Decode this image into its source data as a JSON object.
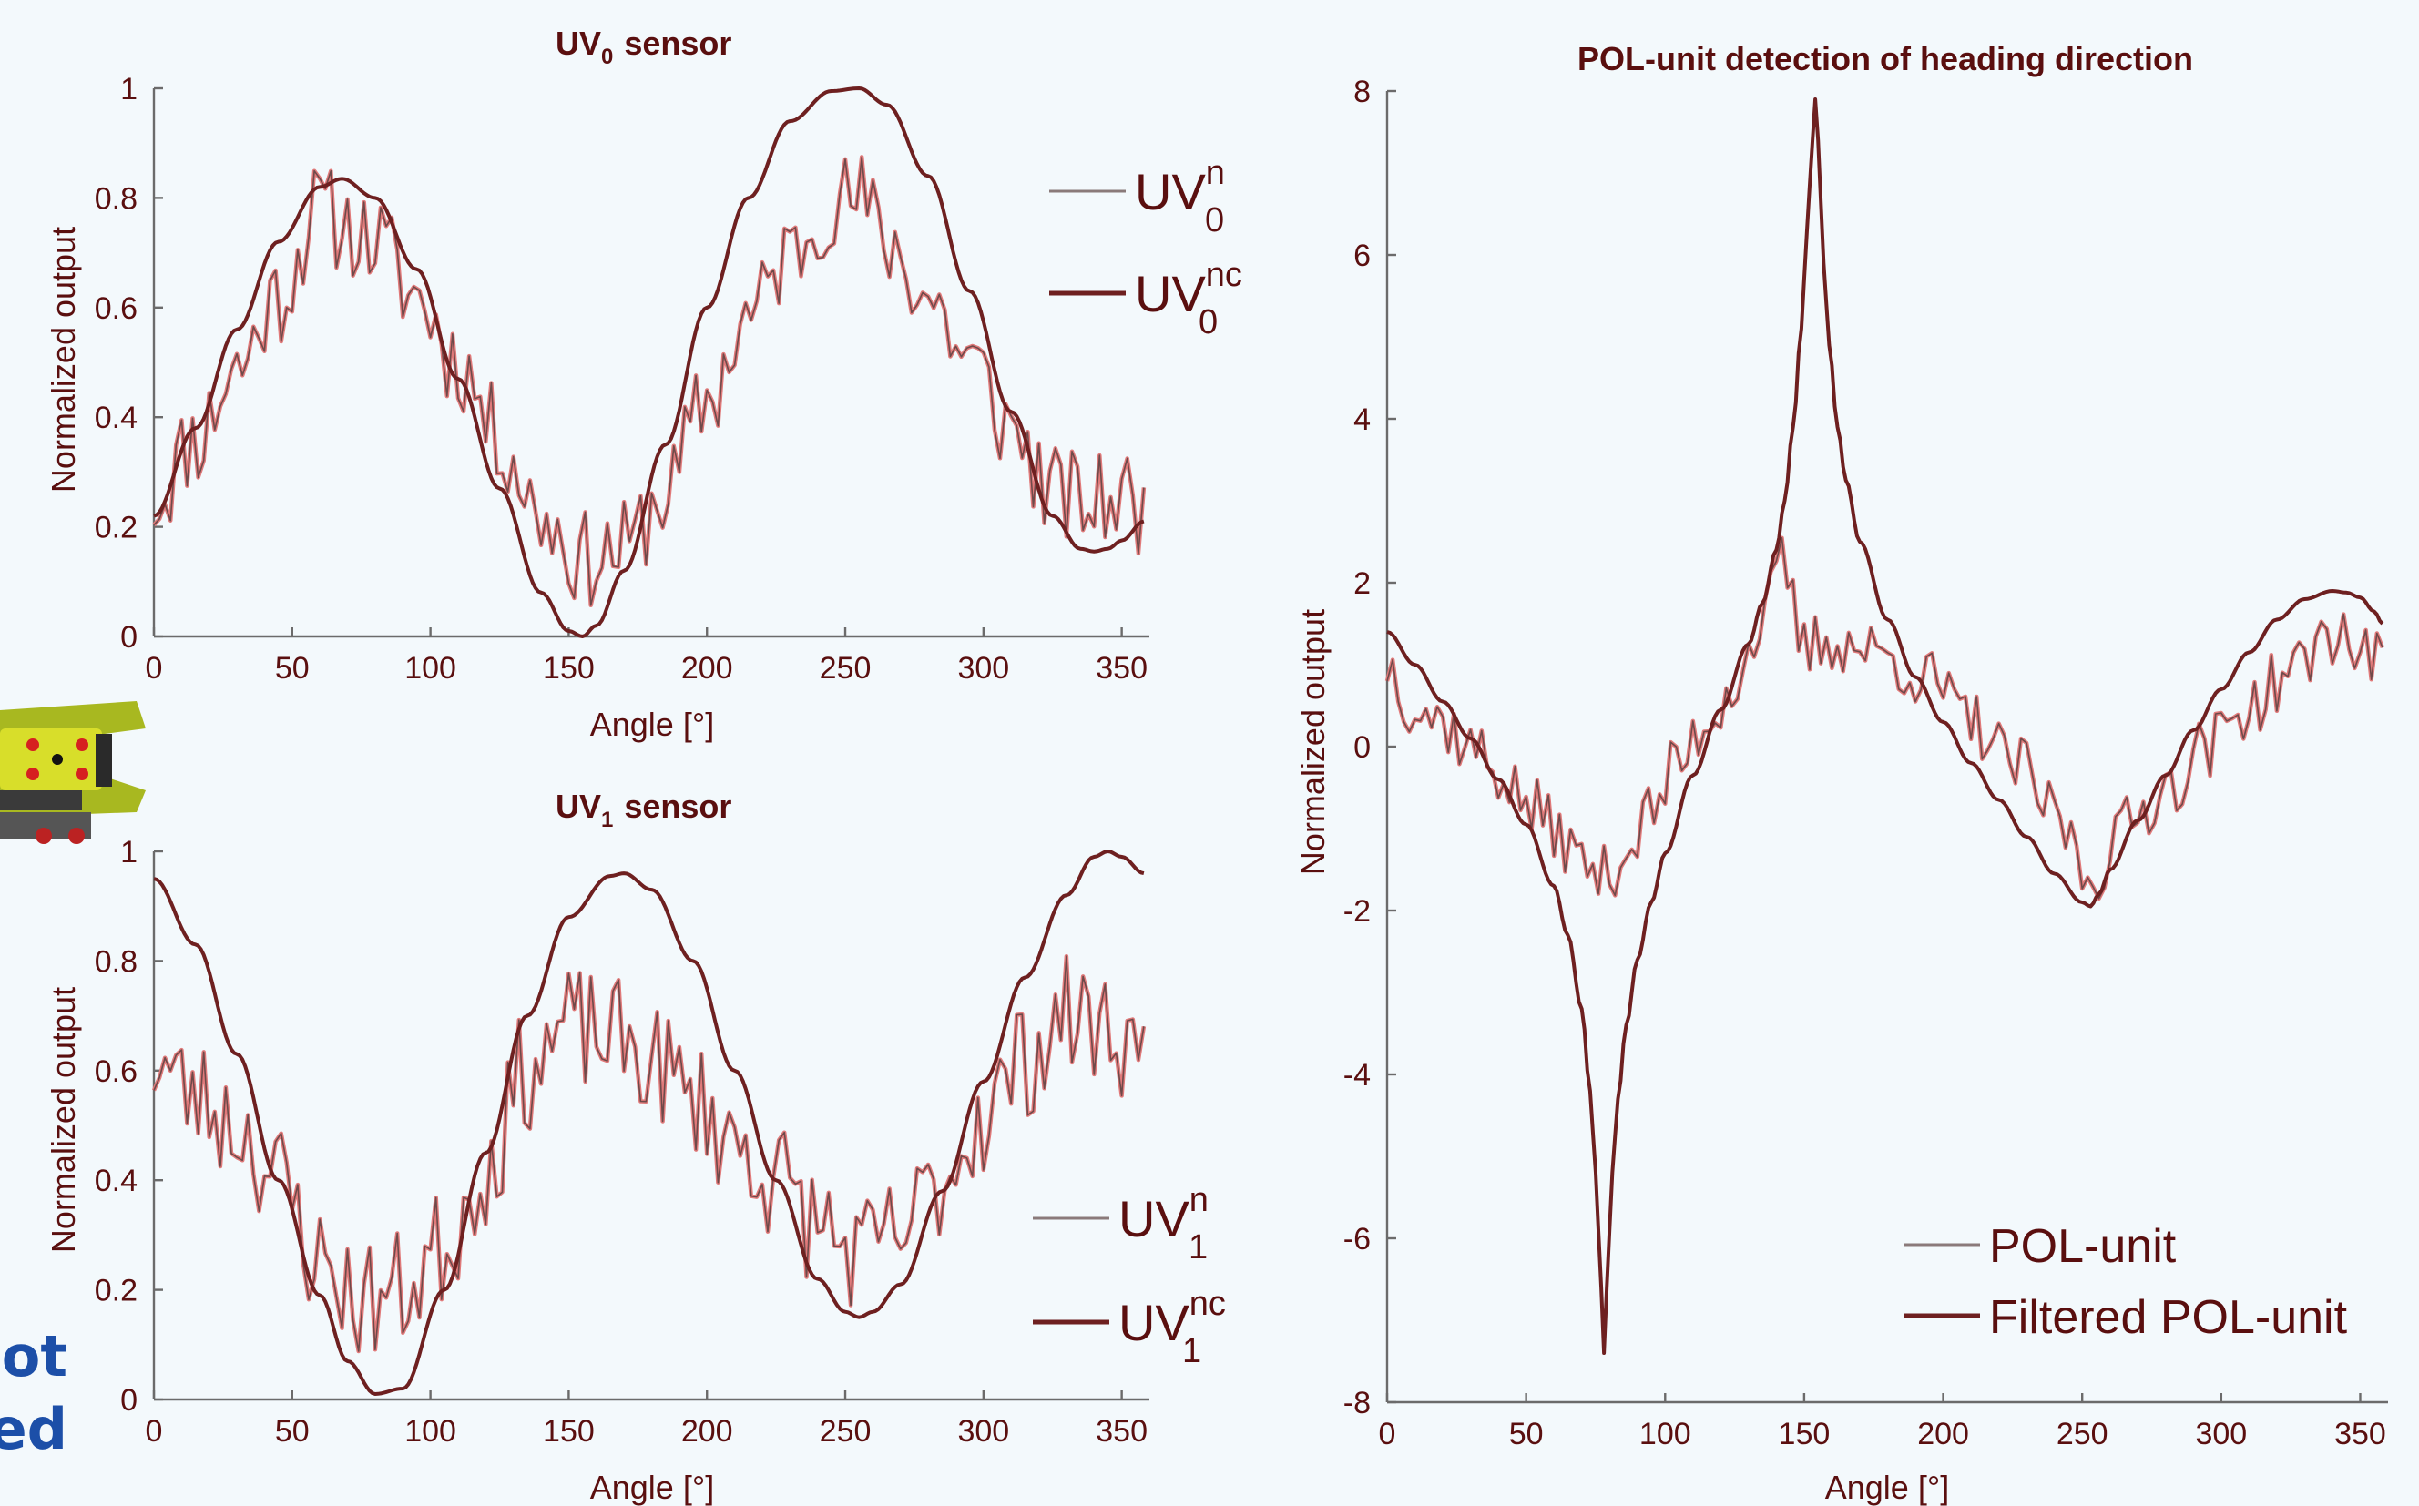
{
  "colors": {
    "text": "#5a0f0f",
    "axis": "#6b6b6b",
    "raw": "#e07a7a",
    "raw_core": "#6e4a4a",
    "filtered": "#6e2020",
    "side_text": "#1c4fa8",
    "background": "#f3f9fc"
  },
  "side_text": {
    "line1": "ot",
    "line2": "ed"
  },
  "robot_image": {
    "icon": "robot-photo-fragment"
  },
  "chart_data": [
    {
      "id": "uv0",
      "type": "line",
      "title_main": "UV",
      "title_sub": "0",
      "title_rest": "sensor",
      "xlabel": "Angle [°]",
      "ylabel": "Normalized output",
      "xlim": [
        0,
        360
      ],
      "ylim": [
        0,
        1
      ],
      "xticks": [
        0,
        50,
        100,
        150,
        200,
        250,
        300,
        350
      ],
      "yticks": [
        0,
        0.2,
        0.4,
        0.6,
        0.8,
        1
      ],
      "grid": false,
      "legend_position": "right",
      "legend": [
        {
          "base": "UV",
          "sup": "n",
          "sub": "0",
          "style": "raw"
        },
        {
          "base": "UV",
          "sup": "nc",
          "sub": "0",
          "style": "filtered"
        }
      ],
      "series": [
        {
          "key": "n",
          "style": "raw",
          "noise_amplitude": 0.09,
          "seed": 11,
          "x": [
            0,
            15,
            30,
            45,
            60,
            68,
            80,
            95,
            110,
            125,
            140,
            155,
            170,
            185,
            200,
            215,
            230,
            245,
            255,
            265,
            280,
            295,
            310,
            325,
            340,
            350,
            358
          ],
          "y": [
            0.25,
            0.36,
            0.49,
            0.62,
            0.78,
            0.75,
            0.72,
            0.62,
            0.5,
            0.36,
            0.22,
            0.14,
            0.16,
            0.26,
            0.43,
            0.58,
            0.7,
            0.79,
            0.8,
            0.72,
            0.62,
            0.5,
            0.38,
            0.26,
            0.24,
            0.26,
            0.22
          ]
        },
        {
          "key": "nc",
          "style": "filtered",
          "x": [
            0,
            15,
            30,
            45,
            60,
            68,
            80,
            95,
            110,
            125,
            140,
            150,
            155,
            160,
            170,
            185,
            200,
            215,
            230,
            245,
            255,
            265,
            280,
            295,
            310,
            325,
            335,
            340,
            345,
            350,
            358
          ],
          "y": [
            0.22,
            0.38,
            0.56,
            0.72,
            0.82,
            0.835,
            0.8,
            0.67,
            0.47,
            0.27,
            0.08,
            0.01,
            0.0,
            0.02,
            0.12,
            0.35,
            0.6,
            0.8,
            0.94,
            0.995,
            1.0,
            0.97,
            0.84,
            0.63,
            0.41,
            0.22,
            0.16,
            0.155,
            0.16,
            0.175,
            0.21
          ]
        }
      ]
    },
    {
      "id": "uv1",
      "type": "line",
      "title_main": "UV",
      "title_sub": "1",
      "title_rest": "sensor",
      "xlabel": "Angle [°]",
      "ylabel": "Normalized output",
      "xlim": [
        0,
        360
      ],
      "ylim": [
        0,
        1
      ],
      "xticks": [
        0,
        50,
        100,
        150,
        200,
        250,
        300,
        350
      ],
      "yticks": [
        0,
        0.2,
        0.4,
        0.6,
        0.8,
        1
      ],
      "grid": false,
      "legend_position": "bottom-right",
      "legend": [
        {
          "base": "UV",
          "sup": "n",
          "sub": "1",
          "style": "raw"
        },
        {
          "base": "UV",
          "sup": "nc",
          "sub": "1",
          "style": "filtered"
        }
      ],
      "series": [
        {
          "key": "n",
          "style": "raw",
          "noise_amplitude": 0.11,
          "seed": 23,
          "x": [
            0,
            15,
            30,
            45,
            60,
            75,
            90,
            105,
            120,
            135,
            150,
            165,
            180,
            195,
            210,
            225,
            240,
            255,
            270,
            285,
            300,
            315,
            330,
            345,
            358
          ],
          "y": [
            0.62,
            0.55,
            0.5,
            0.4,
            0.25,
            0.18,
            0.2,
            0.28,
            0.42,
            0.6,
            0.68,
            0.66,
            0.62,
            0.55,
            0.47,
            0.4,
            0.32,
            0.26,
            0.3,
            0.4,
            0.52,
            0.62,
            0.7,
            0.68,
            0.62
          ]
        },
        {
          "key": "nc",
          "style": "filtered",
          "x": [
            0,
            15,
            30,
            45,
            60,
            70,
            80,
            90,
            105,
            120,
            135,
            150,
            165,
            170,
            180,
            195,
            210,
            225,
            240,
            250,
            255,
            260,
            270,
            285,
            300,
            315,
            330,
            340,
            345,
            350,
            358
          ],
          "y": [
            0.95,
            0.83,
            0.63,
            0.4,
            0.19,
            0.07,
            0.01,
            0.02,
            0.2,
            0.45,
            0.7,
            0.88,
            0.955,
            0.96,
            0.93,
            0.8,
            0.6,
            0.4,
            0.22,
            0.16,
            0.15,
            0.16,
            0.21,
            0.38,
            0.58,
            0.77,
            0.92,
            0.99,
            1.0,
            0.99,
            0.96
          ]
        }
      ]
    },
    {
      "id": "pol",
      "type": "line",
      "title": "POL-unit detection of heading direction",
      "xlabel": "Angle [°]",
      "ylabel": "Normalized output",
      "xlim": [
        0,
        360
      ],
      "ylim": [
        -8,
        8
      ],
      "xticks": [
        0,
        50,
        100,
        150,
        200,
        250,
        300,
        350
      ],
      "yticks": [
        -8,
        -6,
        -4,
        -2,
        0,
        2,
        4,
        6,
        8
      ],
      "grid": false,
      "legend_position": "bottom-right",
      "legend": [
        {
          "label": "POL-unit",
          "style": "raw"
        },
        {
          "label": "Filtered POL-unit",
          "style": "filtered"
        }
      ],
      "series": [
        {
          "key": "pol",
          "style": "raw",
          "noise_amplitude": 0.4,
          "seed": 37,
          "x": [
            0,
            10,
            20,
            30,
            40,
            50,
            60,
            70,
            78,
            85,
            95,
            105,
            115,
            125,
            135,
            142,
            150,
            160,
            170,
            180,
            195,
            210,
            225,
            240,
            253,
            265,
            280,
            295,
            310,
            325,
            340,
            350,
            358
          ],
          "y": [
            1.0,
            0.5,
            0.3,
            0.0,
            -0.3,
            -0.7,
            -1.0,
            -1.4,
            -1.6,
            -1.3,
            -0.8,
            -0.2,
            0.3,
            0.8,
            1.5,
            2.2,
            1.2,
            1.3,
            1.2,
            1.1,
            0.8,
            0.3,
            -0.2,
            -0.8,
            -1.6,
            -1.0,
            -0.5,
            0.0,
            0.5,
            0.9,
            1.4,
            1.2,
            1.0
          ]
        },
        {
          "key": "filtered",
          "style": "filtered",
          "x": [
            0,
            10,
            20,
            30,
            40,
            50,
            60,
            65,
            70,
            73,
            75,
            77,
            78,
            79,
            81,
            83,
            86,
            90,
            95,
            100,
            110,
            120,
            130,
            135,
            140,
            143,
            146,
            149,
            151,
            153,
            154,
            155,
            157,
            159,
            162,
            165,
            170,
            180,
            190,
            200,
            210,
            220,
            230,
            240,
            250,
            253,
            256,
            260,
            270,
            280,
            290,
            300,
            310,
            320,
            330,
            340,
            345,
            350,
            355,
            358
          ],
          "y": [
            1.4,
            1.0,
            0.55,
            0.1,
            -0.4,
            -0.95,
            -1.7,
            -2.3,
            -3.2,
            -4.2,
            -5.2,
            -6.6,
            -7.4,
            -6.6,
            -5.2,
            -4.3,
            -3.4,
            -2.6,
            -1.9,
            -1.3,
            -0.35,
            0.45,
            1.25,
            1.75,
            2.4,
            3.0,
            3.9,
            5.1,
            6.3,
            7.4,
            7.9,
            7.4,
            5.9,
            4.9,
            3.9,
            3.25,
            2.5,
            1.55,
            0.85,
            0.3,
            -0.2,
            -0.65,
            -1.1,
            -1.55,
            -1.9,
            -1.95,
            -1.8,
            -1.5,
            -0.9,
            -0.35,
            0.2,
            0.7,
            1.15,
            1.55,
            1.8,
            1.9,
            1.88,
            1.82,
            1.65,
            1.5
          ]
        }
      ]
    }
  ]
}
